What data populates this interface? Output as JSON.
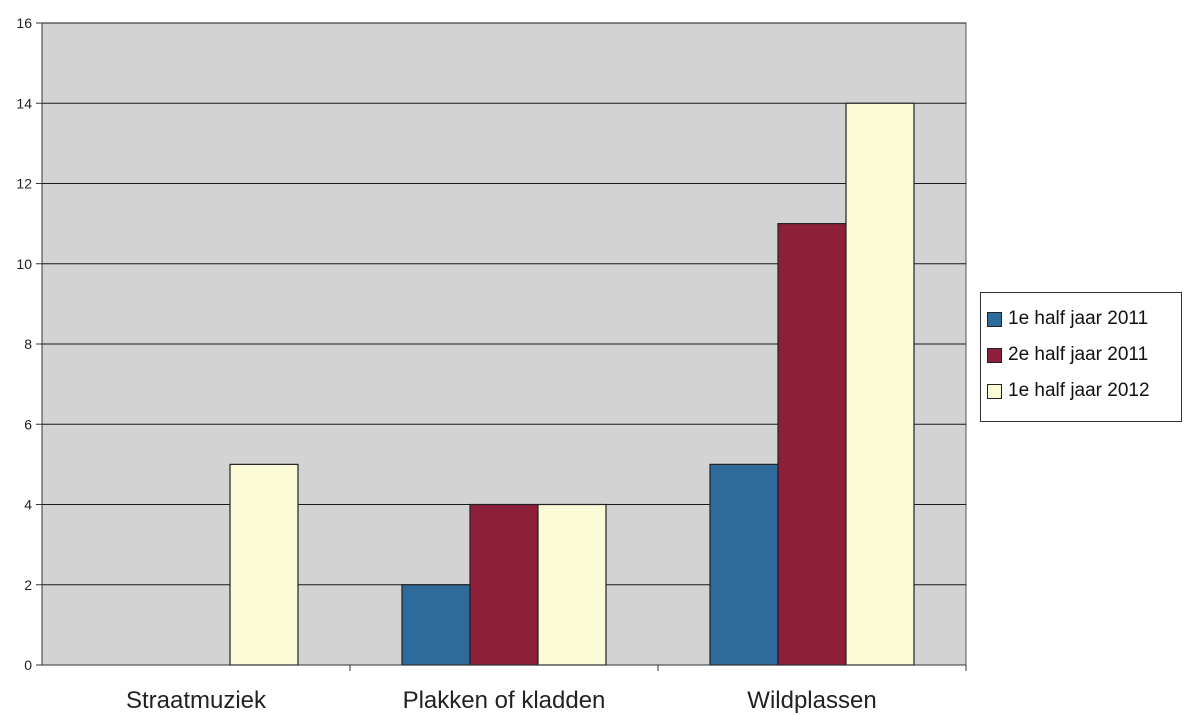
{
  "chart_data": {
    "type": "bar",
    "categories": [
      "Straatmuziek",
      "Plakken of kladden",
      "Wildplassen"
    ],
    "series": [
      {
        "name": "1e half jaar 2011",
        "values": [
          0,
          2,
          5
        ],
        "color": "#2e6b9a"
      },
      {
        "name": "2e half jaar 2011",
        "values": [
          0,
          4,
          11
        ],
        "color": "#8e1f3a"
      },
      {
        "name": "1e half jaar 2012",
        "values": [
          5,
          4,
          14
        ],
        "color": "#fbfbd8"
      }
    ],
    "y_ticks": [
      "0",
      "2",
      "4",
      "6",
      "8",
      "10",
      "12",
      "14",
      "16"
    ],
    "ylim": [
      0,
      16
    ],
    "grid": true,
    "plot_background": "#d3d3d3",
    "legend_position": "right"
  }
}
